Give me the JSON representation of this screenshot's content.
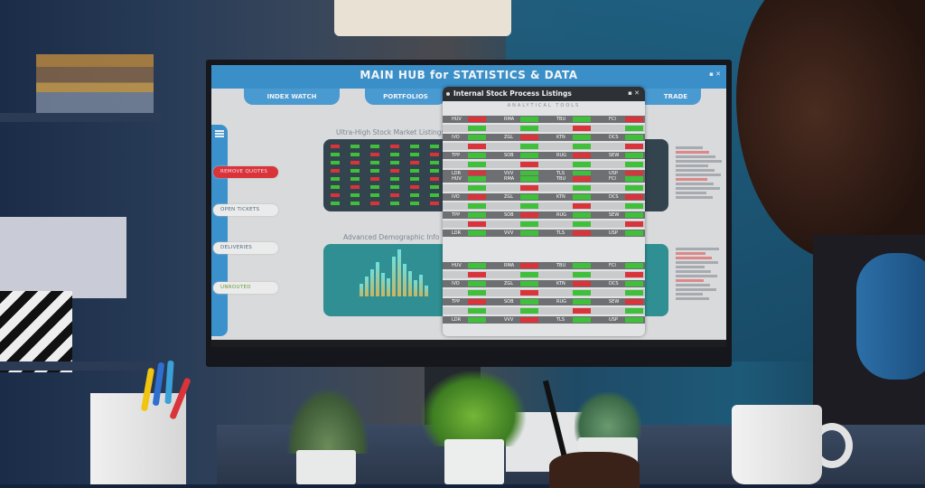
{
  "screen": {
    "title": "MAIN HUB for STATISTICS & DATA",
    "window_controls": "▪ ✕",
    "tabs": [
      "INDEX WATCH",
      "PORTFOLIOS",
      "TRADE"
    ],
    "sidebar_buttons": [
      "REMOVE QUOTES",
      "OPEN TICKETS",
      "DELIVERIES",
      "UNROUTED"
    ],
    "section1_heading": "Ultra-High Stock Market Listings",
    "section2_heading": "Advanced Demographic Info",
    "popup": {
      "title": "Internal Stock Process Listings",
      "controls": "▪ ✕",
      "subtitle": "ANALYTICAL TOOLS",
      "tickers": [
        [
          "HUV",
          "RMA",
          "TBU",
          "FCI"
        ],
        [
          "IVO",
          "ZGL",
          "KTN",
          "DCS"
        ],
        [
          "TPP",
          "SOB",
          "RUG",
          "SEW"
        ],
        [
          "LDR",
          "VVV",
          "TLS",
          "USP"
        ]
      ]
    },
    "accent_color": "#3b8fc8",
    "alert_color": "#d8343a",
    "up_color": "#3fbf3a"
  }
}
